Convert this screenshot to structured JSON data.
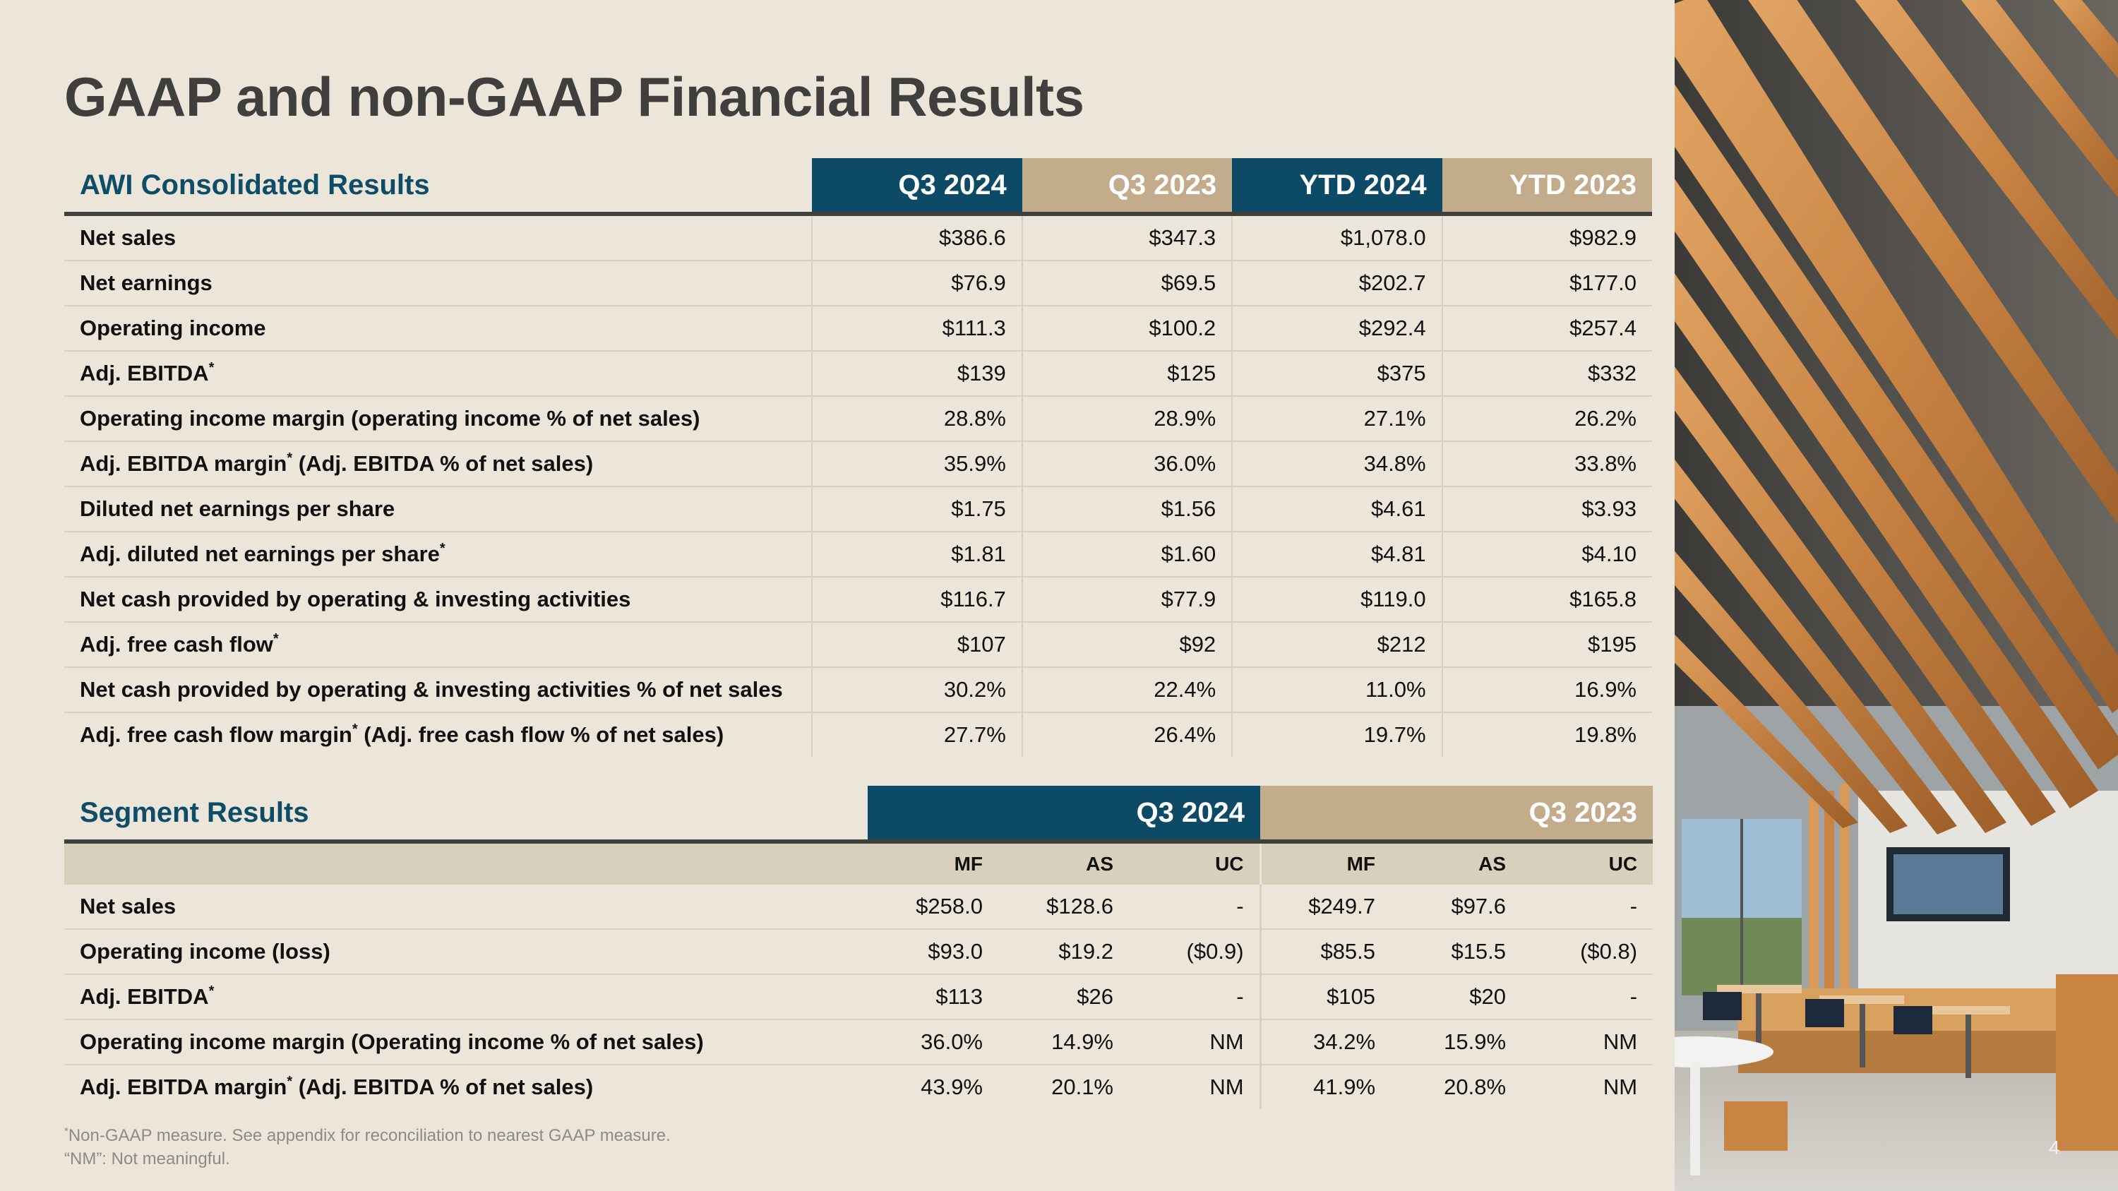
{
  "title": "GAAP and non-GAAP Financial Results",
  "consolidated": {
    "section_label": "AWI Consolidated Results",
    "columns": [
      "Q3 2024",
      "Q3 2023",
      "YTD 2024",
      "YTD 2023"
    ],
    "rows": [
      {
        "label": "Net sales",
        "note": "",
        "rest": "",
        "values": [
          "$386.6",
          "$347.3",
          "$1,078.0",
          "$982.9"
        ]
      },
      {
        "label": "Net earnings",
        "note": "",
        "rest": "",
        "values": [
          "$76.9",
          "$69.5",
          "$202.7",
          "$177.0"
        ]
      },
      {
        "label": "Operating income",
        "note": "",
        "rest": "",
        "values": [
          "$111.3",
          "$100.2",
          "$292.4",
          "$257.4"
        ]
      },
      {
        "label": "Adj. EBITDA",
        "note": "*",
        "rest": "",
        "values": [
          "$139",
          "$125",
          "$375",
          "$332"
        ]
      },
      {
        "label": "Operating income margin (operating income % of net sales)",
        "note": "",
        "rest": "",
        "values": [
          "28.8%",
          "28.9%",
          "27.1%",
          "26.2%"
        ]
      },
      {
        "label": "Adj. EBITDA margin",
        "note": "*",
        "rest": " (Adj. EBITDA % of net sales)",
        "values": [
          "35.9%",
          "36.0%",
          "34.8%",
          "33.8%"
        ]
      },
      {
        "label": "Diluted net earnings per share",
        "note": "",
        "rest": "",
        "values": [
          "$1.75",
          "$1.56",
          "$4.61",
          "$3.93"
        ]
      },
      {
        "label": "Adj. diluted net earnings per share",
        "note": "*",
        "rest": "",
        "values": [
          "$1.81",
          "$1.60",
          "$4.81",
          "$4.10"
        ]
      },
      {
        "label": "Net cash provided by operating & investing activities",
        "note": "",
        "rest": "",
        "values": [
          "$116.7",
          "$77.9",
          "$119.0",
          "$165.8"
        ]
      },
      {
        "label": "Adj. free cash flow",
        "note": "*",
        "rest": "",
        "values": [
          "$107",
          "$92",
          "$212",
          "$195"
        ]
      },
      {
        "label": "Net cash provided by operating & investing activities % of net sales",
        "note": "",
        "rest": "",
        "values": [
          "30.2%",
          "22.4%",
          "11.0%",
          "16.9%"
        ]
      },
      {
        "label": "Adj. free cash flow margin",
        "note": "*",
        "rest": " (Adj. free cash flow % of net sales)",
        "values": [
          "27.7%",
          "26.4%",
          "19.7%",
          "19.8%"
        ]
      }
    ]
  },
  "segment": {
    "section_label": "Segment Results",
    "groups": [
      "Q3 2024",
      "Q3 2023"
    ],
    "subcolumns": [
      "MF",
      "AS",
      "UC",
      "MF",
      "AS",
      "UC"
    ],
    "rows": [
      {
        "label": "Net sales",
        "note": "",
        "rest": "",
        "values": [
          "$258.0",
          "$128.6",
          "-",
          "$249.7",
          "$97.6",
          "-"
        ]
      },
      {
        "label": "Operating income (loss)",
        "note": "",
        "rest": "",
        "values": [
          "$93.0",
          "$19.2",
          "($0.9)",
          "$85.5",
          "$15.5",
          "($0.8)"
        ]
      },
      {
        "label": "Adj. EBITDA",
        "note": "*",
        "rest": "",
        "values": [
          "$113",
          "$26",
          "-",
          "$105",
          "$20",
          "-"
        ]
      },
      {
        "label": "Operating income margin (Operating income % of net sales)",
        "note": "",
        "rest": "",
        "values": [
          "36.0%",
          "14.9%",
          "NM",
          "34.2%",
          "15.9%",
          "NM"
        ]
      },
      {
        "label": "Adj. EBITDA margin",
        "note": "*",
        "rest": " (Adj. EBITDA % of net sales)",
        "values": [
          "43.9%",
          "20.1%",
          "NM",
          "41.9%",
          "20.8%",
          "NM"
        ]
      }
    ]
  },
  "footnotes": {
    "mark": "*",
    "line1": "Non-GAAP measure. See appendix for reconciliation to nearest GAAP measure.",
    "line2": "“NM”: Not meaningful."
  },
  "page_number": "4",
  "colors": {
    "navy": "#0c4a66",
    "tan": "#c2ac8c",
    "background": "#ece5d9"
  }
}
